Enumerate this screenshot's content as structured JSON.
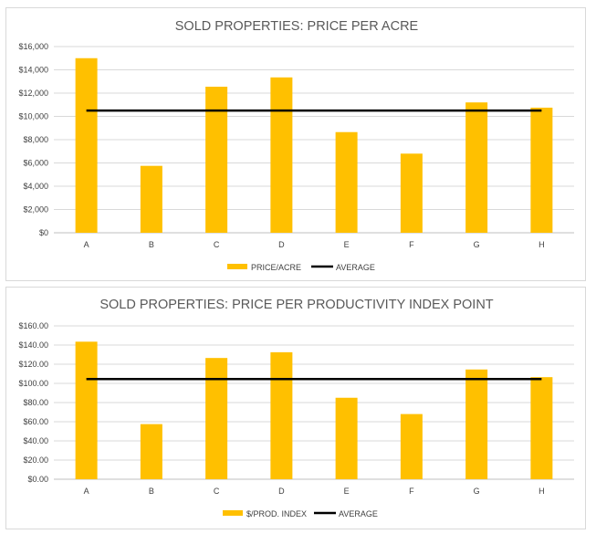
{
  "chart_data": [
    {
      "type": "bar",
      "title": "SOLD PROPERTIES: PRICE PER ACRE",
      "categories": [
        "A",
        "B",
        "C",
        "D",
        "E",
        "F",
        "G",
        "H"
      ],
      "series": [
        {
          "name": "PRICE/ACRE",
          "type": "bar",
          "color": "#FFC000",
          "values": [
            15000,
            5750,
            12550,
            13350,
            8650,
            6800,
            11200,
            10750
          ]
        },
        {
          "name": "AVERAGE",
          "type": "line",
          "color": "#000000",
          "values": [
            10500,
            10500,
            10500,
            10500,
            10500,
            10500,
            10500,
            10500
          ]
        }
      ],
      "ylim": [
        0,
        16000
      ],
      "yticks": [
        "$0",
        "$2,000",
        "$4,000",
        "$6,000",
        "$8,000",
        "$10,000",
        "$12,000",
        "$14,000",
        "$16,000"
      ],
      "grid": true,
      "legend": "bottom"
    },
    {
      "type": "bar",
      "title": "SOLD PROPERTIES: PRICE PER PRODUCTIVITY INDEX  POINT",
      "categories": [
        "A",
        "B",
        "C",
        "D",
        "E",
        "F",
        "G",
        "H"
      ],
      "series": [
        {
          "name": "$/PROD. INDEX",
          "type": "bar",
          "color": "#FFC000",
          "values": [
            143.5,
            57.5,
            126.5,
            132.5,
            85,
            68,
            114.5,
            106.5
          ]
        },
        {
          "name": "AVERAGE",
          "type": "line",
          "color": "#000000",
          "values": [
            104.5,
            104.5,
            104.5,
            104.5,
            104.5,
            104.5,
            104.5,
            104.5
          ]
        }
      ],
      "ylim": [
        0,
        160
      ],
      "yticks": [
        "$0.00",
        "$20.00",
        "$40.00",
        "$60.00",
        "$80.00",
        "$100.00",
        "$120.00",
        "$140.00",
        "$160.00"
      ],
      "grid": true,
      "legend": "bottom"
    }
  ]
}
